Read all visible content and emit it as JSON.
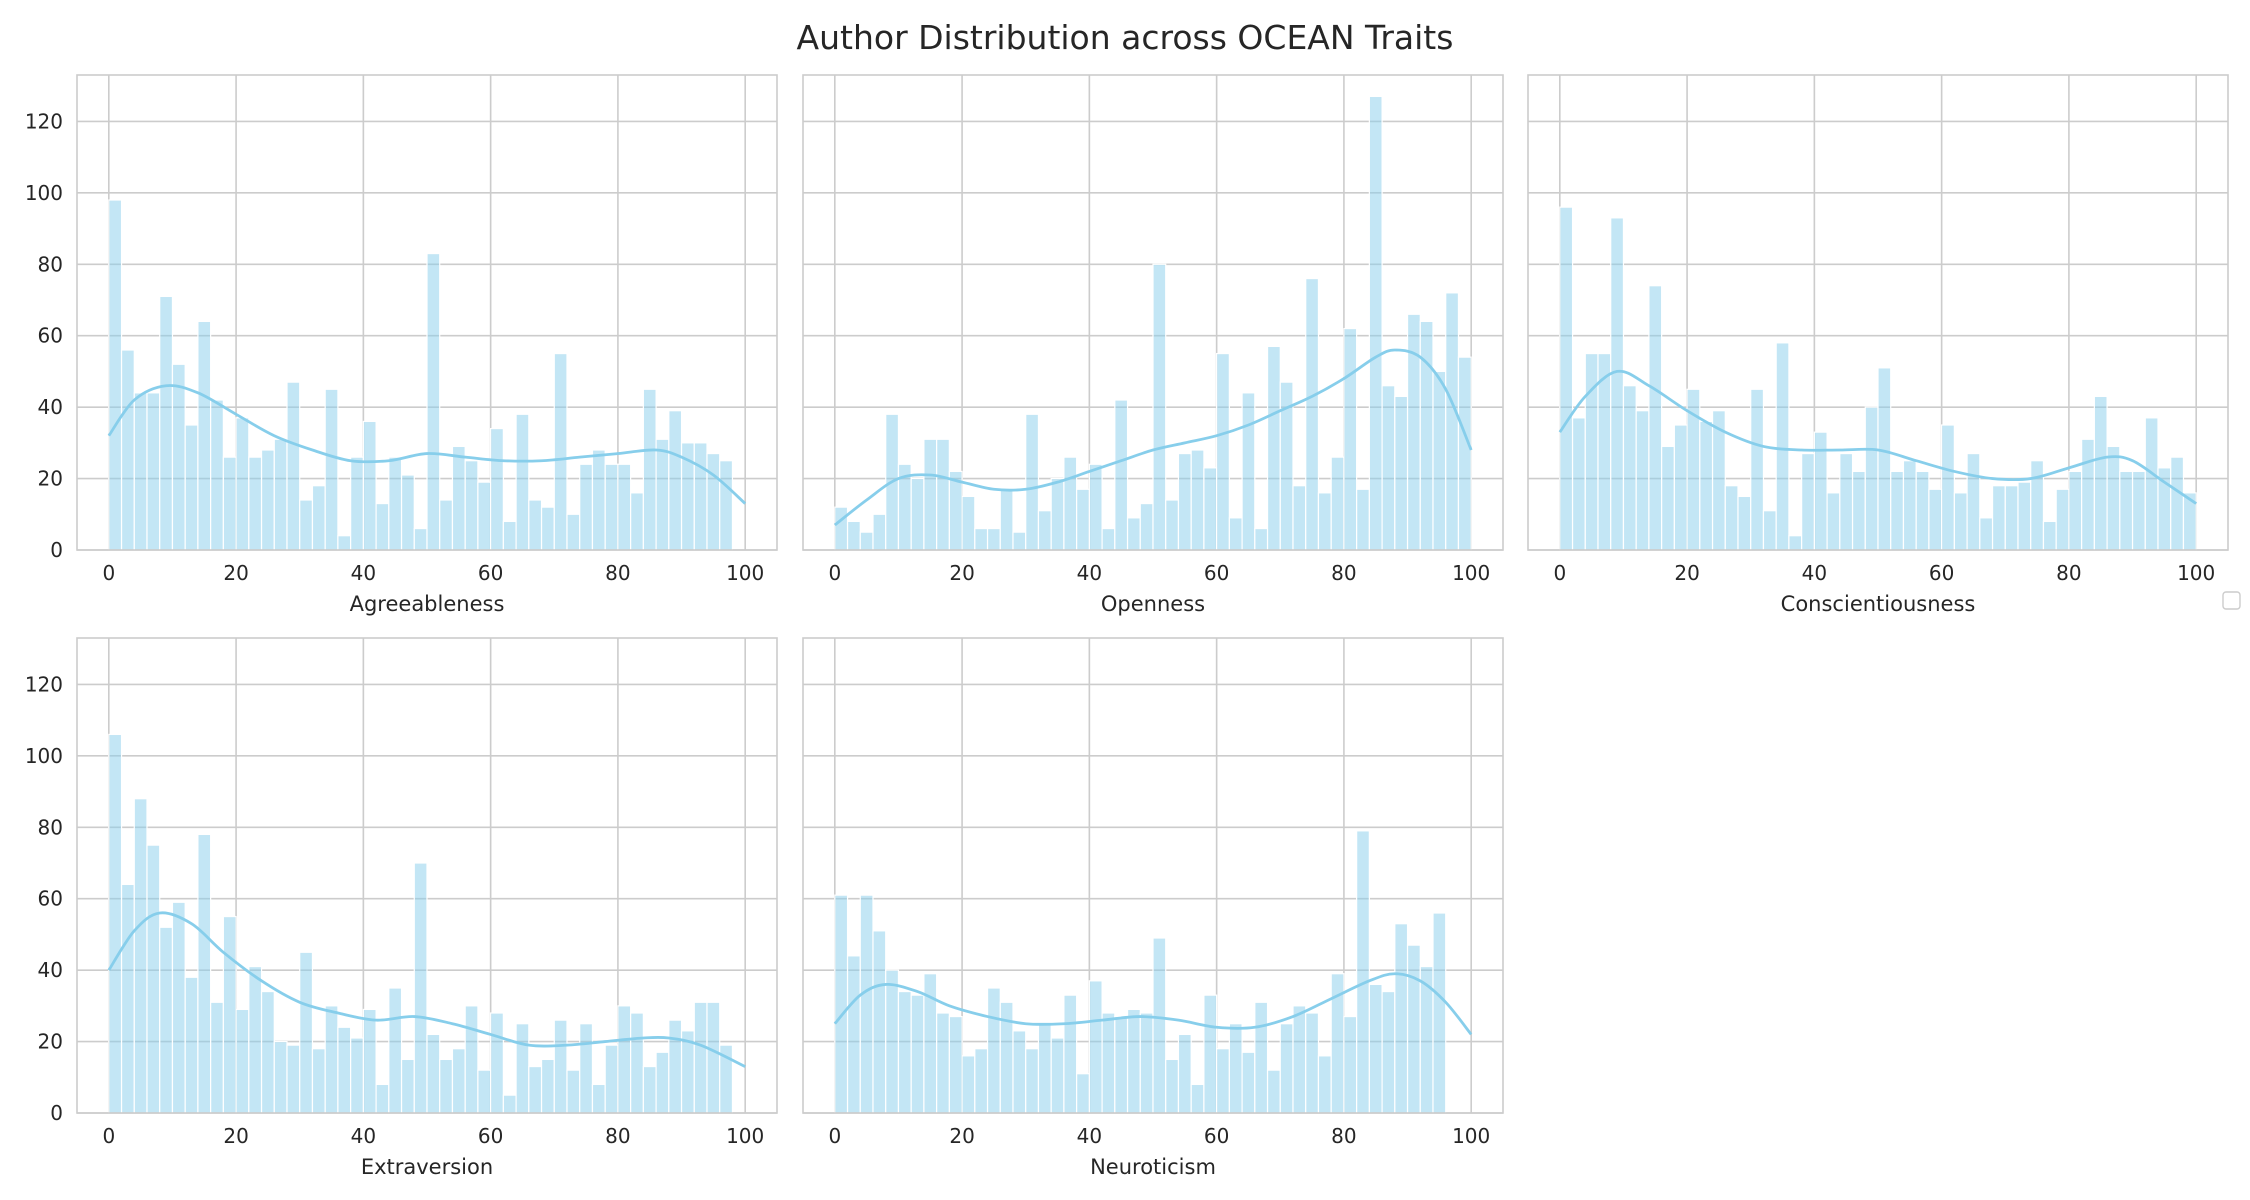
{
  "figure_title": "Author Distribution across OCEAN Traits",
  "chart_data": [
    {
      "type": "histogram",
      "xlabel": "Agreeableness",
      "xlim": [
        -5,
        105
      ],
      "ylim": [
        0,
        133
      ],
      "xticks": [
        0,
        20,
        40,
        60,
        80,
        100
      ],
      "yticks": [
        0,
        20,
        40,
        60,
        80,
        100,
        120
      ],
      "bin_start": 0,
      "bin_width": 2,
      "counts": [
        98,
        56,
        44,
        44,
        71,
        52,
        35,
        64,
        42,
        26,
        37,
        26,
        28,
        31,
        47,
        14,
        18,
        45,
        4,
        26,
        36,
        13,
        26,
        21,
        6,
        83,
        14,
        29,
        25,
        19,
        34,
        8,
        38,
        14,
        12,
        55,
        10,
        24,
        28,
        24,
        24,
        16,
        45,
        31,
        39,
        30,
        30,
        27,
        25
      ],
      "kde": [
        [
          0,
          32
        ],
        [
          4,
          42
        ],
        [
          9,
          46
        ],
        [
          14,
          44
        ],
        [
          20,
          38
        ],
        [
          26,
          32
        ],
        [
          32,
          28
        ],
        [
          38,
          25
        ],
        [
          44,
          25
        ],
        [
          50,
          27
        ],
        [
          56,
          26
        ],
        [
          62,
          25
        ],
        [
          68,
          25
        ],
        [
          74,
          26
        ],
        [
          80,
          27
        ],
        [
          86,
          28
        ],
        [
          90,
          26
        ],
        [
          95,
          21
        ],
        [
          100,
          13
        ]
      ]
    },
    {
      "type": "histogram",
      "xlabel": "Openness",
      "xlim": [
        -5,
        105
      ],
      "ylim": [
        0,
        133
      ],
      "xticks": [
        0,
        20,
        40,
        60,
        80,
        100
      ],
      "yticks": [
        0,
        20,
        40,
        60,
        80,
        100,
        120
      ],
      "bin_start": 0,
      "bin_width": 2,
      "counts": [
        12,
        8,
        5,
        10,
        38,
        24,
        20,
        31,
        31,
        22,
        15,
        6,
        6,
        17,
        5,
        38,
        11,
        20,
        26,
        17,
        24,
        6,
        42,
        9,
        13,
        80,
        14,
        27,
        28,
        23,
        55,
        9,
        44,
        6,
        57,
        47,
        18,
        76,
        16,
        26,
        62,
        17,
        127,
        46,
        43,
        66,
        64,
        50,
        72,
        54
      ],
      "kde": [
        [
          0,
          7
        ],
        [
          5,
          14
        ],
        [
          10,
          20
        ],
        [
          15,
          21
        ],
        [
          20,
          19
        ],
        [
          25,
          17
        ],
        [
          30,
          17
        ],
        [
          35,
          19
        ],
        [
          40,
          22
        ],
        [
          45,
          25
        ],
        [
          50,
          28
        ],
        [
          55,
          30
        ],
        [
          60,
          32
        ],
        [
          65,
          35
        ],
        [
          70,
          39
        ],
        [
          75,
          43
        ],
        [
          80,
          48
        ],
        [
          85,
          54
        ],
        [
          88,
          56
        ],
        [
          92,
          54
        ],
        [
          96,
          45
        ],
        [
          100,
          28
        ]
      ]
    },
    {
      "type": "histogram",
      "xlabel": "Conscientiousness",
      "xlim": [
        -5,
        105
      ],
      "ylim": [
        0,
        133
      ],
      "xticks": [
        0,
        20,
        40,
        60,
        80,
        100
      ],
      "yticks": [
        0,
        20,
        40,
        60,
        80,
        100,
        120
      ],
      "bin_start": 0,
      "bin_width": 2,
      "counts": [
        96,
        37,
        55,
        55,
        93,
        46,
        39,
        74,
        29,
        35,
        45,
        36,
        39,
        18,
        15,
        45,
        11,
        58,
        4,
        27,
        33,
        16,
        27,
        22,
        40,
        51,
        22,
        25,
        22,
        17,
        35,
        16,
        27,
        9,
        18,
        18,
        19,
        25,
        8,
        17,
        22,
        31,
        43,
        29,
        22,
        22,
        37,
        23,
        26,
        16
      ],
      "kde": [
        [
          0,
          33
        ],
        [
          4,
          43
        ],
        [
          9,
          50
        ],
        [
          14,
          46
        ],
        [
          20,
          39
        ],
        [
          26,
          33
        ],
        [
          32,
          29
        ],
        [
          38,
          28
        ],
        [
          44,
          28
        ],
        [
          50,
          28
        ],
        [
          56,
          25
        ],
        [
          62,
          22
        ],
        [
          68,
          20
        ],
        [
          74,
          20
        ],
        [
          80,
          23
        ],
        [
          86,
          26
        ],
        [
          90,
          25
        ],
        [
          95,
          19
        ],
        [
          100,
          13
        ]
      ]
    },
    {
      "type": "histogram",
      "xlabel": "Extraversion",
      "xlim": [
        -5,
        105
      ],
      "ylim": [
        0,
        133
      ],
      "xticks": [
        0,
        20,
        40,
        60,
        80,
        100
      ],
      "yticks": [
        0,
        20,
        40,
        60,
        80,
        100,
        120
      ],
      "bin_start": 0,
      "bin_width": 2,
      "counts": [
        106,
        64,
        88,
        75,
        52,
        59,
        38,
        78,
        31,
        55,
        29,
        41,
        34,
        20,
        19,
        45,
        18,
        30,
        24,
        21,
        29,
        8,
        35,
        15,
        70,
        22,
        15,
        18,
        30,
        12,
        28,
        5,
        25,
        13,
        15,
        26,
        12,
        25,
        8,
        19,
        30,
        28,
        13,
        17,
        26,
        23,
        31,
        31,
        19
      ],
      "kde": [
        [
          0,
          40
        ],
        [
          4,
          51
        ],
        [
          8,
          56
        ],
        [
          13,
          53
        ],
        [
          18,
          45
        ],
        [
          24,
          37
        ],
        [
          30,
          31
        ],
        [
          36,
          28
        ],
        [
          42,
          26
        ],
        [
          48,
          27
        ],
        [
          54,
          25
        ],
        [
          60,
          22
        ],
        [
          66,
          19
        ],
        [
          72,
          19
        ],
        [
          78,
          20
        ],
        [
          84,
          21
        ],
        [
          88,
          21
        ],
        [
          93,
          19
        ],
        [
          100,
          13
        ]
      ]
    },
    {
      "type": "histogram",
      "xlabel": "Neuroticism",
      "xlim": [
        -5,
        105
      ],
      "ylim": [
        0,
        133
      ],
      "xticks": [
        0,
        20,
        40,
        60,
        80,
        100
      ],
      "yticks": [
        0,
        20,
        40,
        60,
        80,
        100,
        120
      ],
      "bin_start": 0,
      "bin_width": 2,
      "counts": [
        61,
        44,
        61,
        51,
        40,
        34,
        33,
        39,
        28,
        27,
        16,
        18,
        35,
        31,
        23,
        18,
        25,
        21,
        33,
        11,
        37,
        28,
        27,
        29,
        28,
        49,
        15,
        22,
        8,
        33,
        18,
        25,
        17,
        31,
        12,
        25,
        30,
        28,
        16,
        39,
        27,
        79,
        36,
        34,
        53,
        47,
        41,
        56
      ],
      "kde": [
        [
          0,
          25
        ],
        [
          4,
          33
        ],
        [
          8,
          36
        ],
        [
          13,
          34
        ],
        [
          18,
          30
        ],
        [
          24,
          27
        ],
        [
          30,
          25
        ],
        [
          36,
          25
        ],
        [
          42,
          26
        ],
        [
          48,
          27
        ],
        [
          54,
          26
        ],
        [
          60,
          24
        ],
        [
          66,
          24
        ],
        [
          72,
          27
        ],
        [
          78,
          32
        ],
        [
          84,
          37
        ],
        [
          88,
          39
        ],
        [
          92,
          37
        ],
        [
          96,
          31
        ],
        [
          100,
          22
        ]
      ]
    }
  ]
}
